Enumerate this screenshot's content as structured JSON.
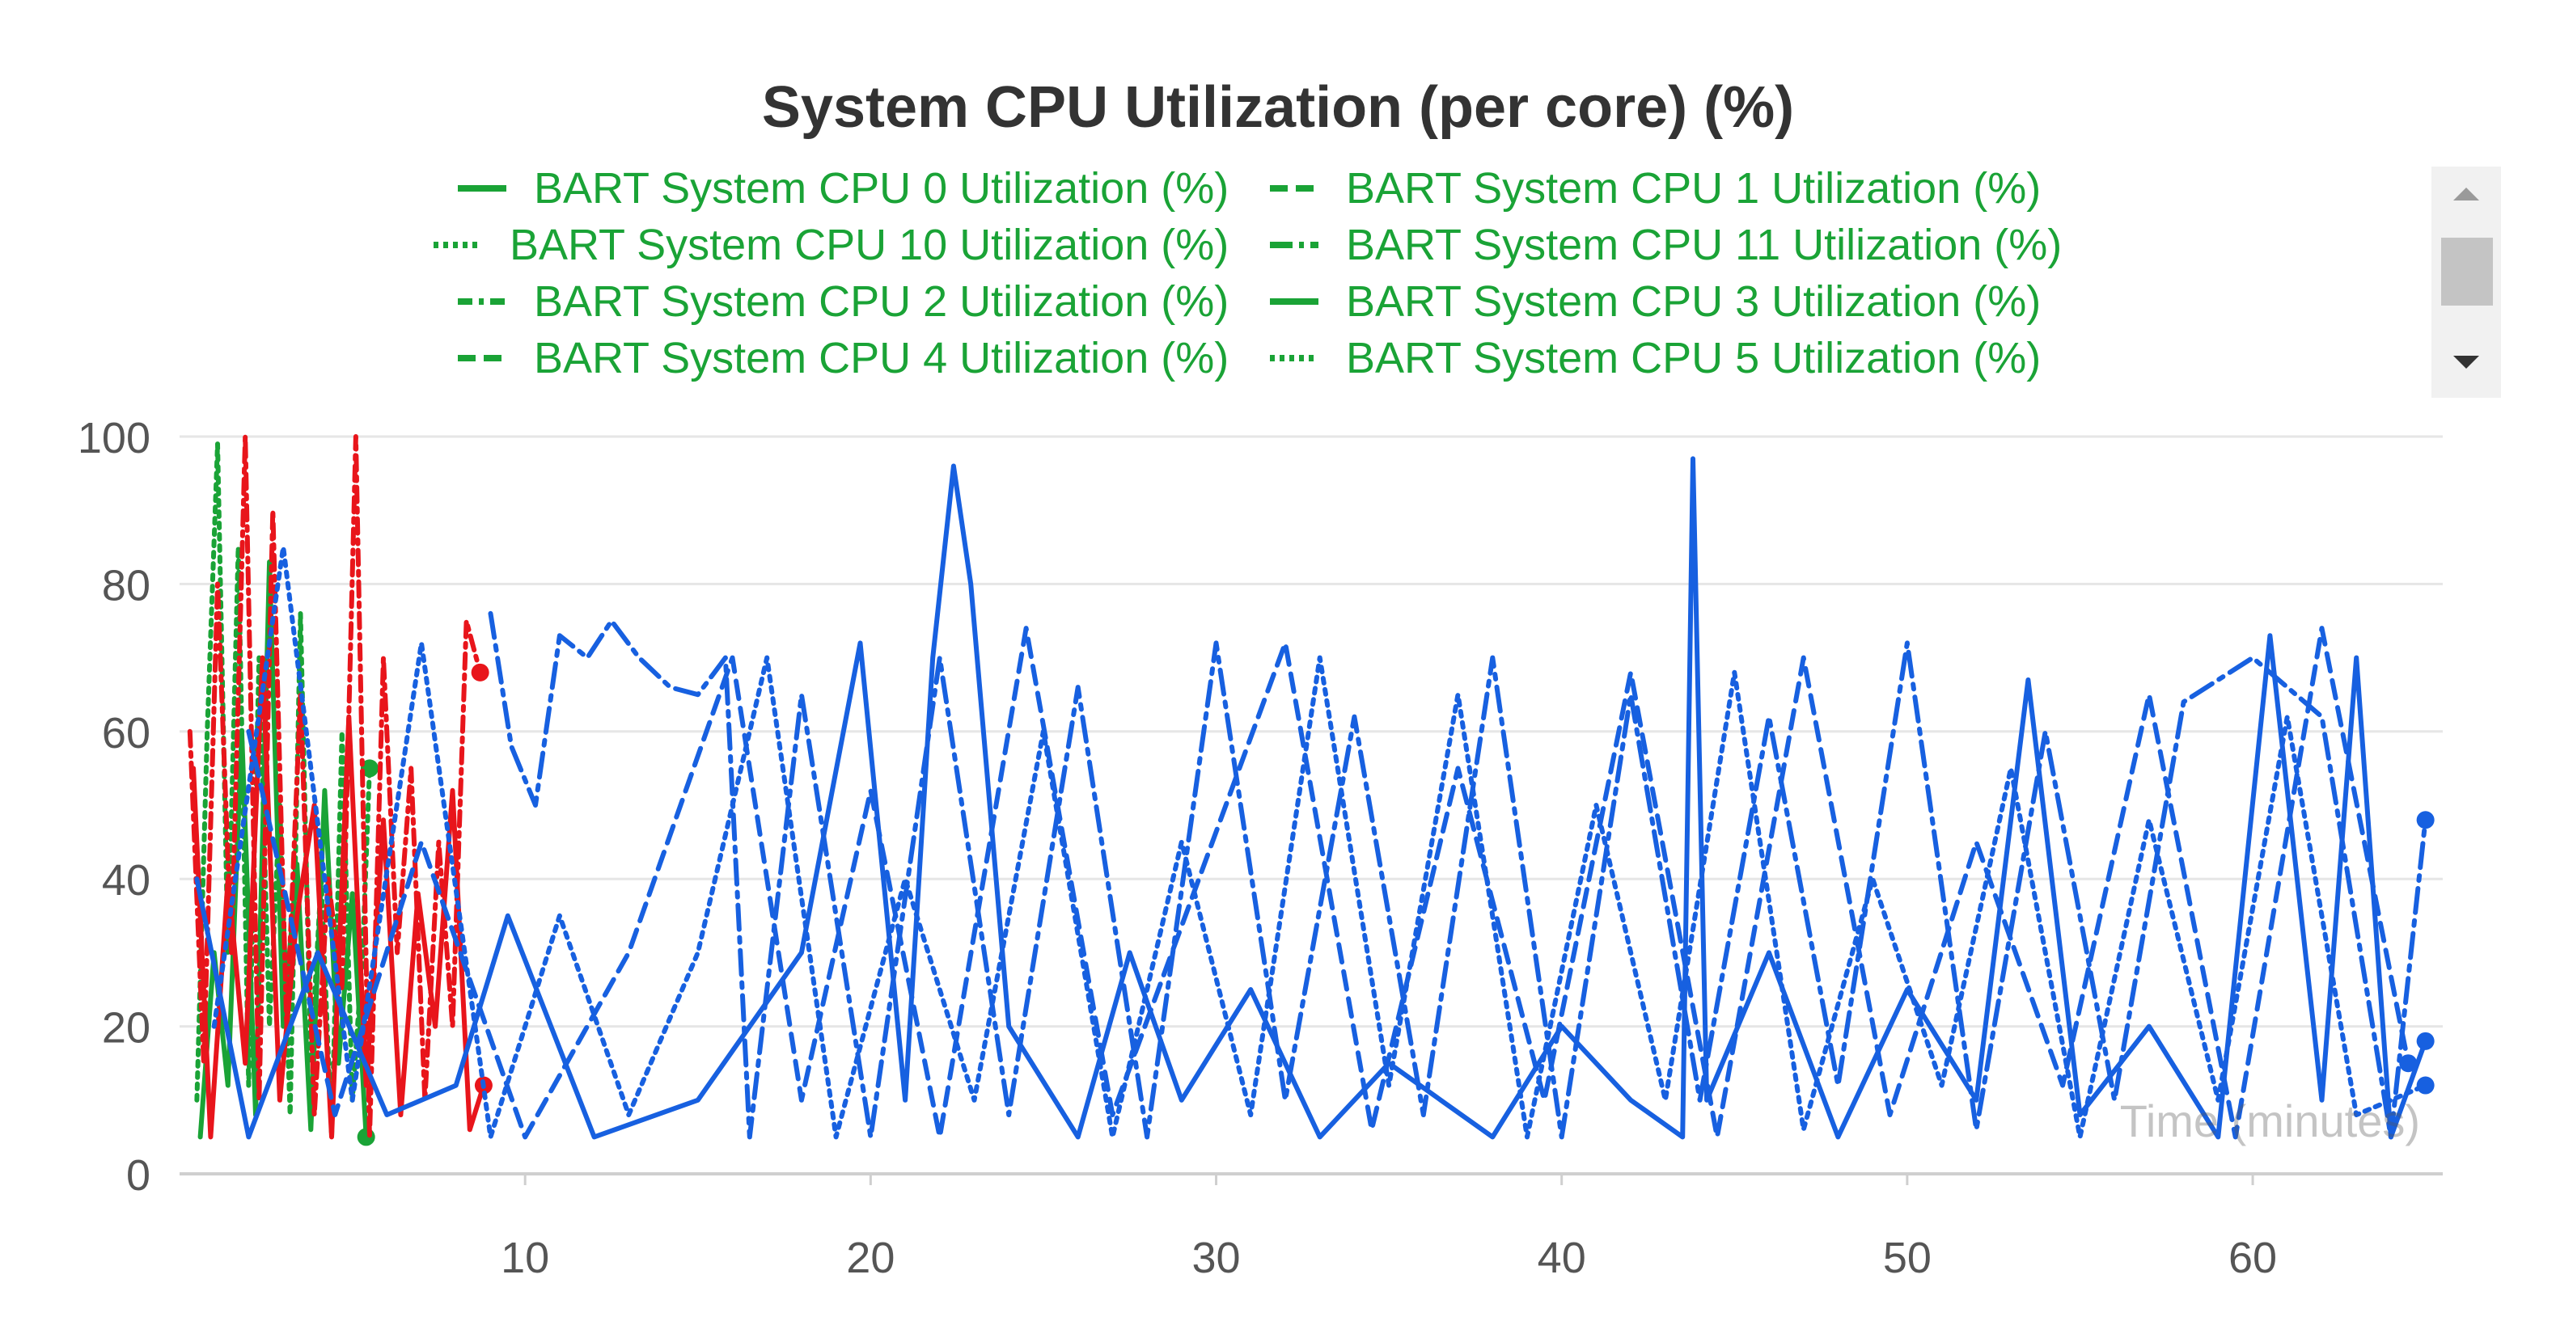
{
  "chart_data": {
    "type": "line",
    "title": "System CPU Utilization (per core) (%)",
    "xlabel": "Time (minutes)",
    "ylabel": "",
    "xlim": [
      0,
      65.5
    ],
    "ylim": [
      0,
      100
    ],
    "xticks": [
      10,
      20,
      30,
      40,
      50,
      60
    ],
    "yticks": [
      0,
      20,
      40,
      60,
      80,
      100
    ],
    "grid": true,
    "legend_placement": "top-center",
    "legend": [
      {
        "name": "BART System CPU 0 Utilization (%)",
        "dash": "solid"
      },
      {
        "name": "BART System CPU 1 Utilization (%)",
        "dash": "dash"
      },
      {
        "name": "BART System CPU 10 Utilization (%)",
        "dash": "dot"
      },
      {
        "name": "BART System CPU 11 Utilization (%)",
        "dash": "longdashdot"
      },
      {
        "name": "BART System CPU 2 Utilization (%)",
        "dash": "dashdot"
      },
      {
        "name": "BART System CPU 3 Utilization (%)",
        "dash": "solid"
      },
      {
        "name": "BART System CPU 4 Utilization (%)",
        "dash": "dash"
      },
      {
        "name": "BART System CPU 5 Utilization (%)",
        "dash": "dot"
      }
    ],
    "series": [
      {
        "group": "green",
        "color": "#1aa336",
        "dash": "dot",
        "x": [
          0.5,
          0.8,
          1.1,
          1.4,
          1.7,
          2.0,
          2.3,
          2.6,
          2.9,
          3.2,
          3.5,
          3.8,
          4.1,
          4.4,
          4.7,
          5.0,
          5.3,
          5.5
        ],
        "y": [
          10,
          60,
          99,
          30,
          85,
          12,
          70,
          20,
          50,
          8,
          76,
          15,
          40,
          5,
          60,
          10,
          30,
          55
        ]
      },
      {
        "group": "green",
        "color": "#1aa336",
        "dash": "solid",
        "x": [
          0.6,
          1.0,
          1.4,
          1.8,
          2.2,
          2.6,
          3.0,
          3.4,
          3.8,
          4.2,
          4.6,
          5.0,
          5.4
        ],
        "y": [
          5,
          30,
          12,
          60,
          8,
          83,
          20,
          42,
          6,
          52,
          15,
          38,
          5
        ]
      },
      {
        "group": "red",
        "color": "#e8151b",
        "dash": "dashdot",
        "x": [
          0.3,
          0.7,
          1.1,
          1.5,
          1.9,
          2.3,
          2.7,
          3.1,
          3.5,
          3.9,
          4.3,
          4.7,
          5.1,
          5.5,
          5.9,
          6.3,
          6.7,
          7.1,
          7.5,
          7.9,
          8.3,
          8.7
        ],
        "y": [
          60,
          15,
          80,
          30,
          100,
          10,
          90,
          20,
          65,
          8,
          40,
          25,
          100,
          5,
          70,
          30,
          55,
          10,
          45,
          20,
          75,
          68
        ]
      },
      {
        "group": "red",
        "color": "#e8151b",
        "dash": "solid",
        "x": [
          0.4,
          0.9,
          1.4,
          1.9,
          2.4,
          2.9,
          3.4,
          3.9,
          4.4,
          4.9,
          5.4,
          5.9,
          6.4,
          6.9,
          7.4,
          7.9,
          8.4,
          8.8
        ],
        "y": [
          55,
          5,
          40,
          15,
          70,
          10,
          35,
          50,
          5,
          62,
          12,
          48,
          8,
          38,
          20,
          52,
          6,
          12
        ]
      },
      {
        "group": "blue",
        "color": "#1760e0",
        "dash": "solid",
        "x": [
          0.5,
          2.0,
          4.0,
          6.0,
          8.0,
          9.5,
          12.0,
          15.0,
          18.0,
          19.7,
          21.0,
          21.8,
          22.4,
          22.9,
          24.0,
          26.0,
          27.5,
          29.0,
          31.0,
          33.0,
          35.0,
          38.0,
          40.0,
          42.0,
          43.5,
          43.8,
          44.2,
          46.0,
          48.0,
          50.0,
          52.0,
          53.5,
          55.0,
          57.0,
          59.0,
          60.5,
          62.0,
          63.0,
          64.0,
          65.0
        ],
        "y": [
          40,
          5,
          30,
          8,
          12,
          35,
          5,
          10,
          30,
          72,
          10,
          70,
          96,
          80,
          20,
          5,
          30,
          10,
          25,
          5,
          15,
          5,
          20,
          10,
          5,
          97,
          10,
          30,
          5,
          25,
          10,
          67,
          8,
          20,
          5,
          73,
          10,
          70,
          5,
          18
        ]
      },
      {
        "group": "blue",
        "color": "#1760e0",
        "dash": "longdashdot",
        "x": [
          9.0,
          9.6,
          10.3,
          11.0,
          11.8,
          12.5,
          13.3,
          14.2,
          15.0,
          15.8,
          16.5,
          18.0,
          20.0,
          22.0,
          24.0,
          26.0,
          28.0,
          30.0,
          32.0,
          34.0,
          36.0,
          38.0,
          40.0,
          42.0,
          44.0,
          46.0,
          48.0,
          50.0,
          52.0,
          54.0,
          56.0,
          58.0,
          60.0,
          62.0,
          64.0,
          65.0
        ],
        "y": [
          76,
          58,
          50,
          73,
          70,
          75,
          70,
          66,
          65,
          70,
          5,
          65,
          5,
          70,
          8,
          66,
          5,
          72,
          10,
          62,
          8,
          70,
          5,
          65,
          10,
          62,
          12,
          72,
          6,
          60,
          10,
          64,
          70,
          62,
          5,
          48
        ]
      },
      {
        "group": "blue",
        "color": "#1760e0",
        "dash": "dot",
        "x": [
          1.0,
          3.0,
          5.0,
          7.0,
          9.0,
          11.0,
          13.0,
          15.0,
          17.0,
          19.0,
          21.0,
          23.0,
          25.0,
          27.0,
          29.0,
          31.0,
          33.0,
          35.0,
          37.0,
          39.0,
          41.0,
          43.0,
          45.0,
          47.0,
          49.0,
          51.0,
          53.0,
          55.0,
          57.0,
          59.0,
          61.0,
          63.0,
          65.0
        ],
        "y": [
          20,
          85,
          10,
          72,
          5,
          35,
          8,
          30,
          70,
          5,
          40,
          10,
          60,
          5,
          45,
          8,
          70,
          12,
          65,
          5,
          50,
          10,
          68,
          6,
          40,
          12,
          55,
          5,
          48,
          10,
          62,
          8,
          12
        ]
      },
      {
        "group": "blue",
        "color": "#1760e0",
        "dash": "dash",
        "x": [
          2.0,
          4.5,
          7.0,
          10.0,
          13.0,
          16.0,
          18.0,
          20.0,
          22.0,
          24.5,
          27.0,
          29.5,
          32.0,
          34.5,
          37.0,
          39.5,
          42.0,
          44.5,
          47.0,
          49.5,
          52.0,
          54.5,
          57.0,
          59.5,
          62.0,
          64.5
        ],
        "y": [
          60,
          8,
          45,
          5,
          30,
          70,
          10,
          52,
          5,
          74,
          8,
          40,
          72,
          6,
          55,
          10,
          68,
          5,
          70,
          8,
          45,
          12,
          65,
          5,
          74,
          15
        ]
      }
    ]
  }
}
